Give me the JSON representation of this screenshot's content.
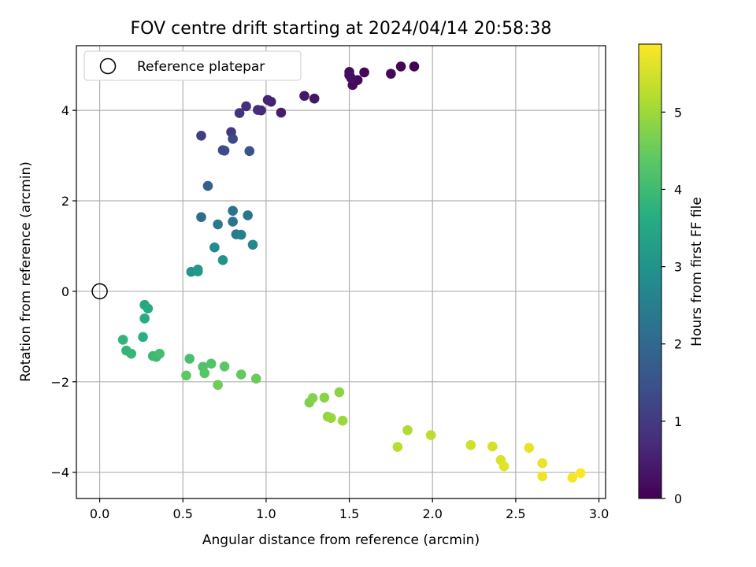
{
  "chart_data": {
    "type": "scatter",
    "title": "FOV centre drift starting at 2024/04/14 20:58:38",
    "xlabel": "Angular distance from reference (arcmin)",
    "ylabel": "Rotation from reference (arcmin)",
    "xlim": [
      -0.14,
      3.04
    ],
    "ylim": [
      -4.58,
      5.43
    ],
    "xticks": [
      0.0,
      0.5,
      1.0,
      1.5,
      2.0,
      2.5,
      3.0
    ],
    "xtick_labels": [
      "0.0",
      "0.5",
      "1.0",
      "1.5",
      "2.0",
      "2.5",
      "3.0"
    ],
    "yticks": [
      -4,
      -2,
      0,
      2,
      4
    ],
    "ytick_labels": [
      "−4",
      "−2",
      "0",
      "2",
      "4"
    ],
    "grid": true,
    "legend": {
      "entries": [
        "Reference platepar"
      ],
      "placement": "top-left"
    },
    "reference_point": {
      "x": 0.0,
      "y": 0.0
    },
    "colorbar": {
      "label": "Hours from first FF file",
      "colormap": "viridis",
      "range": [
        0,
        5.88
      ],
      "ticks": [
        0,
        1,
        2,
        3,
        4,
        5
      ],
      "tick_labels": [
        "0",
        "1",
        "2",
        "3",
        "4",
        "5"
      ]
    },
    "points": [
      {
        "x": 1.89,
        "y": 4.97,
        "t": 0.02
      },
      {
        "x": 1.81,
        "y": 4.97,
        "t": 0.05
      },
      {
        "x": 1.75,
        "y": 4.81,
        "t": 0.08
      },
      {
        "x": 1.59,
        "y": 4.84,
        "t": 0.1
      },
      {
        "x": 1.55,
        "y": 4.67,
        "t": 0.13
      },
      {
        "x": 1.52,
        "y": 4.56,
        "t": 0.15
      },
      {
        "x": 1.5,
        "y": 4.78,
        "t": 0.18
      },
      {
        "x": 1.5,
        "y": 4.85,
        "t": 0.2
      },
      {
        "x": 1.51,
        "y": 4.72,
        "t": 0.23
      },
      {
        "x": 1.29,
        "y": 4.26,
        "t": 0.33
      },
      {
        "x": 1.23,
        "y": 4.32,
        "t": 0.38
      },
      {
        "x": 1.09,
        "y": 3.95,
        "t": 0.45
      },
      {
        "x": 1.03,
        "y": 4.19,
        "t": 0.52
      },
      {
        "x": 1.01,
        "y": 4.23,
        "t": 0.58
      },
      {
        "x": 0.97,
        "y": 4.0,
        "t": 0.65
      },
      {
        "x": 0.95,
        "y": 4.01,
        "t": 0.72
      },
      {
        "x": 0.88,
        "y": 4.09,
        "t": 0.8
      },
      {
        "x": 0.84,
        "y": 3.94,
        "t": 0.88
      },
      {
        "x": 0.79,
        "y": 3.52,
        "t": 1.0
      },
      {
        "x": 0.61,
        "y": 3.44,
        "t": 1.1
      },
      {
        "x": 0.8,
        "y": 3.37,
        "t": 1.25
      },
      {
        "x": 0.74,
        "y": 3.12,
        "t": 1.35
      },
      {
        "x": 0.75,
        "y": 3.11,
        "t": 1.4
      },
      {
        "x": 0.9,
        "y": 3.1,
        "t": 1.5
      },
      {
        "x": 0.65,
        "y": 2.33,
        "t": 1.8
      },
      {
        "x": 0.61,
        "y": 1.64,
        "t": 2.1
      },
      {
        "x": 0.8,
        "y": 1.78,
        "t": 2.2
      },
      {
        "x": 0.89,
        "y": 1.68,
        "t": 2.25
      },
      {
        "x": 0.8,
        "y": 1.54,
        "t": 2.3
      },
      {
        "x": 0.71,
        "y": 1.48,
        "t": 2.35
      },
      {
        "x": 0.82,
        "y": 1.26,
        "t": 2.45
      },
      {
        "x": 0.85,
        "y": 1.25,
        "t": 2.55
      },
      {
        "x": 0.92,
        "y": 1.03,
        "t": 2.7
      },
      {
        "x": 0.69,
        "y": 0.97,
        "t": 2.8
      },
      {
        "x": 0.74,
        "y": 0.69,
        "t": 3.0
      },
      {
        "x": 0.55,
        "y": 0.43,
        "t": 3.05
      },
      {
        "x": 0.59,
        "y": 0.48,
        "t": 3.1
      },
      {
        "x": 0.59,
        "y": 0.44,
        "t": 3.15
      },
      {
        "x": 0.27,
        "y": -0.3,
        "t": 3.5
      },
      {
        "x": 0.29,
        "y": -0.38,
        "t": 3.55
      },
      {
        "x": 0.27,
        "y": -0.6,
        "t": 3.6
      },
      {
        "x": 0.26,
        "y": -1.01,
        "t": 3.7
      },
      {
        "x": 0.14,
        "y": -1.07,
        "t": 3.8
      },
      {
        "x": 0.16,
        "y": -1.31,
        "t": 3.85
      },
      {
        "x": 0.19,
        "y": -1.38,
        "t": 3.9
      },
      {
        "x": 0.32,
        "y": -1.43,
        "t": 3.95
      },
      {
        "x": 0.34,
        "y": -1.45,
        "t": 4.0
      },
      {
        "x": 0.36,
        "y": -1.38,
        "t": 4.05
      },
      {
        "x": 0.54,
        "y": -1.49,
        "t": 4.15
      },
      {
        "x": 0.62,
        "y": -1.67,
        "t": 4.2
      },
      {
        "x": 0.67,
        "y": -1.6,
        "t": 4.25
      },
      {
        "x": 0.63,
        "y": -1.81,
        "t": 4.3
      },
      {
        "x": 0.75,
        "y": -1.66,
        "t": 4.35
      },
      {
        "x": 0.52,
        "y": -1.86,
        "t": 4.4
      },
      {
        "x": 0.85,
        "y": -1.84,
        "t": 4.45
      },
      {
        "x": 0.94,
        "y": -1.93,
        "t": 4.5
      },
      {
        "x": 0.71,
        "y": -2.07,
        "t": 4.55
      },
      {
        "x": 1.26,
        "y": -2.46,
        "t": 4.7
      },
      {
        "x": 1.28,
        "y": -2.36,
        "t": 4.75
      },
      {
        "x": 1.35,
        "y": -2.35,
        "t": 4.8
      },
      {
        "x": 1.44,
        "y": -2.23,
        "t": 4.85
      },
      {
        "x": 1.37,
        "y": -2.77,
        "t": 4.9
      },
      {
        "x": 1.39,
        "y": -2.8,
        "t": 4.95
      },
      {
        "x": 1.46,
        "y": -2.86,
        "t": 5.0
      },
      {
        "x": 1.85,
        "y": -3.07,
        "t": 5.15
      },
      {
        "x": 1.79,
        "y": -3.44,
        "t": 5.25
      },
      {
        "x": 1.99,
        "y": -3.18,
        "t": 5.3
      },
      {
        "x": 2.23,
        "y": -3.4,
        "t": 5.45
      },
      {
        "x": 2.36,
        "y": -3.43,
        "t": 5.5
      },
      {
        "x": 2.41,
        "y": -3.73,
        "t": 5.55
      },
      {
        "x": 2.43,
        "y": -3.87,
        "t": 5.6
      },
      {
        "x": 2.58,
        "y": -3.46,
        "t": 5.65
      },
      {
        "x": 2.66,
        "y": -3.8,
        "t": 5.7
      },
      {
        "x": 2.66,
        "y": -4.09,
        "t": 5.75
      },
      {
        "x": 2.84,
        "y": -4.12,
        "t": 5.8
      },
      {
        "x": 2.89,
        "y": -4.02,
        "t": 5.85
      }
    ]
  }
}
